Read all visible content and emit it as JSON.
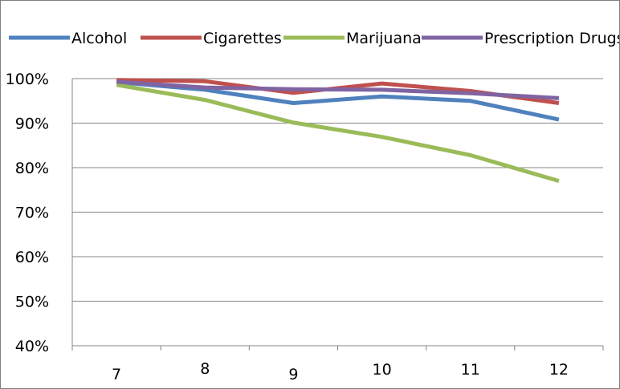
{
  "chart_data": {
    "type": "line",
    "title": "",
    "xlabel": "",
    "ylabel": "",
    "x": [
      "7",
      "8",
      "9",
      "10",
      "11",
      "12"
    ],
    "ylim": [
      40,
      100
    ],
    "y_ticks": [
      40,
      50,
      60,
      70,
      80,
      90,
      100
    ],
    "y_tick_labels": [
      "40%",
      "50%",
      "60%",
      "70%",
      "80%",
      "90%",
      "100%"
    ],
    "grid": "horizontal",
    "legend_position": "top",
    "series": [
      {
        "name": "Alcohol",
        "color": "#4f81bd",
        "values": [
          99.2,
          97.5,
          94.5,
          96.0,
          95.0,
          90.8
        ]
      },
      {
        "name": "Cigarettes",
        "color": "#c0504d",
        "values": [
          99.7,
          99.4,
          96.8,
          98.9,
          97.2,
          94.5
        ]
      },
      {
        "name": "Marijuana",
        "color": "#9bbb59",
        "values": [
          98.6,
          95.2,
          90.1,
          86.9,
          82.8,
          77.0
        ]
      },
      {
        "name": "Prescription Drugs",
        "color": "#8064a2",
        "values": [
          99.3,
          98.0,
          97.6,
          97.5,
          96.7,
          95.6
        ]
      }
    ]
  }
}
